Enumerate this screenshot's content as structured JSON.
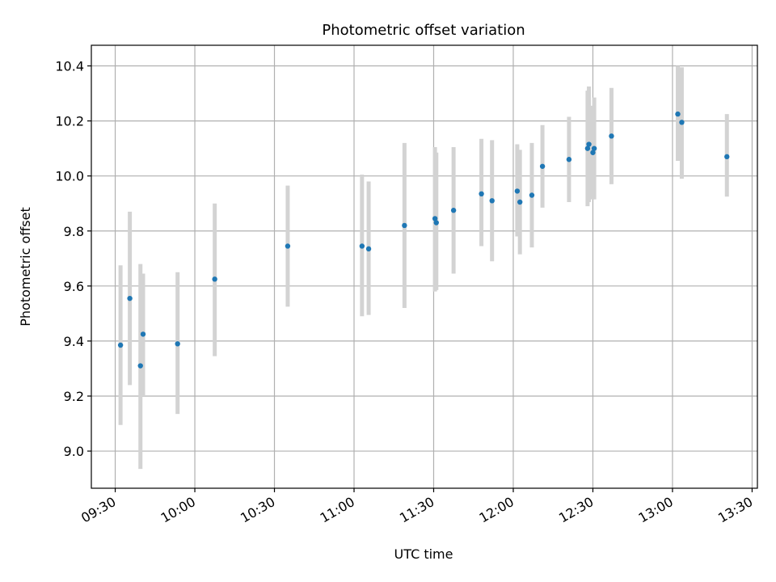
{
  "chart_data": {
    "type": "scatter",
    "title": "Photometric offset variation",
    "xlabel": "UTC time",
    "ylabel": "Photometric offset",
    "xlim": [
      "09:21",
      "13:32"
    ],
    "ylim": [
      8.865,
      10.475
    ],
    "grid": true,
    "x_ticks": [
      "09:30",
      "10:00",
      "10:30",
      "11:00",
      "11:30",
      "12:00",
      "12:30",
      "13:00",
      "13:30"
    ],
    "y_ticks": [
      "9.0",
      "9.2",
      "9.4",
      "9.6",
      "9.8",
      "10.0",
      "10.2",
      "10.4"
    ],
    "colors": {
      "points": "#1f77b4",
      "error_bars": "#d3d3d3",
      "grid": "#b0b0b0"
    },
    "series": [
      {
        "points": [
          {
            "x": "09:32:00",
            "y": 9.385,
            "y_low": 9.095,
            "y_high": 9.675
          },
          {
            "x": "09:35:30",
            "y": 9.555,
            "y_low": 9.24,
            "y_high": 9.87
          },
          {
            "x": "09:39:30",
            "y": 9.31,
            "y_low": 8.935,
            "y_high": 9.68
          },
          {
            "x": "09:40:30",
            "y": 9.425,
            "y_low": 9.2,
            "y_high": 9.645
          },
          {
            "x": "09:53:30",
            "y": 9.39,
            "y_low": 9.135,
            "y_high": 9.65
          },
          {
            "x": "10:07:30",
            "y": 9.625,
            "y_low": 9.345,
            "y_high": 9.9
          },
          {
            "x": "10:35:00",
            "y": 9.745,
            "y_low": 9.525,
            "y_high": 9.965
          },
          {
            "x": "11:03:00",
            "y": 9.745,
            "y_low": 9.49,
            "y_high": 10.005
          },
          {
            "x": "11:05:30",
            "y": 9.735,
            "y_low": 9.495,
            "y_high": 9.98
          },
          {
            "x": "11:19:00",
            "y": 9.82,
            "y_low": 9.52,
            "y_high": 10.12
          },
          {
            "x": "11:30:30",
            "y": 9.845,
            "y_low": 9.58,
            "y_high": 10.105
          },
          {
            "x": "11:31:00",
            "y": 9.83,
            "y_low": 9.585,
            "y_high": 10.085
          },
          {
            "x": "11:37:30",
            "y": 9.875,
            "y_low": 9.645,
            "y_high": 10.105
          },
          {
            "x": "11:48:00",
            "y": 9.935,
            "y_low": 9.745,
            "y_high": 10.135
          },
          {
            "x": "11:52:00",
            "y": 9.91,
            "y_low": 9.69,
            "y_high": 10.13
          },
          {
            "x": "12:01:30",
            "y": 9.945,
            "y_low": 9.78,
            "y_high": 10.115
          },
          {
            "x": "12:02:30",
            "y": 9.905,
            "y_low": 9.715,
            "y_high": 10.095
          },
          {
            "x": "12:07:00",
            "y": 9.93,
            "y_low": 9.74,
            "y_high": 10.12
          },
          {
            "x": "12:11:00",
            "y": 10.035,
            "y_low": 9.885,
            "y_high": 10.185
          },
          {
            "x": "12:21:00",
            "y": 10.06,
            "y_low": 9.905,
            "y_high": 10.215
          },
          {
            "x": "12:28:00",
            "y": 10.1,
            "y_low": 9.89,
            "y_high": 10.31
          },
          {
            "x": "12:28:30",
            "y": 10.115,
            "y_low": 9.905,
            "y_high": 10.325
          },
          {
            "x": "12:30:00",
            "y": 10.085,
            "y_low": 9.915,
            "y_high": 10.255
          },
          {
            "x": "12:30:30",
            "y": 10.1,
            "y_low": 9.915,
            "y_high": 10.285
          },
          {
            "x": "12:37:00",
            "y": 10.145,
            "y_low": 9.97,
            "y_high": 10.32
          },
          {
            "x": "13:02:00",
            "y": 10.225,
            "y_low": 10.055,
            "y_high": 10.4
          },
          {
            "x": "13:03:30",
            "y": 10.195,
            "y_low": 9.99,
            "y_high": 10.395
          },
          {
            "x": "13:20:30",
            "y": 10.07,
            "y_low": 9.925,
            "y_high": 10.225
          }
        ]
      }
    ]
  }
}
